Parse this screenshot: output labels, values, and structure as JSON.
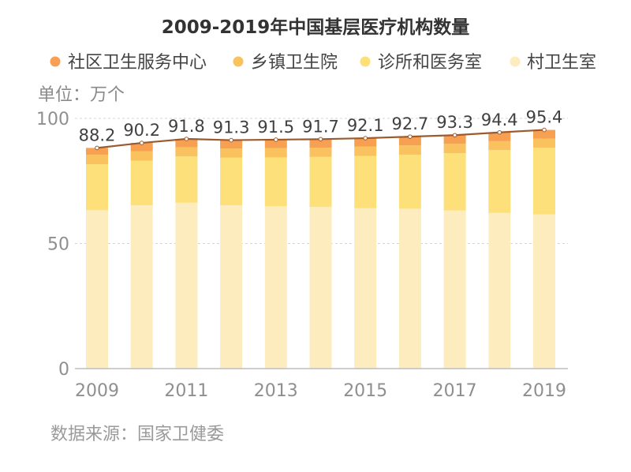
{
  "chart_data": {
    "type": "bar",
    "stacked": true,
    "title": "2009-2019年中国基层医疗机构数量",
    "unit_label": "单位：万个",
    "categories": [
      2009,
      2010,
      2011,
      2012,
      2013,
      2014,
      2015,
      2016,
      2017,
      2018,
      2019
    ],
    "x_tick_labels": [
      "2009",
      "2011",
      "2013",
      "2015",
      "2017",
      "2019"
    ],
    "ylim": [
      0,
      100
    ],
    "y_ticks": [
      0,
      50,
      100
    ],
    "grid": true,
    "series": [
      {
        "name": "社区卫生服务中心",
        "color": "#F7A052",
        "values": [
          2.7,
          3.3,
          3.3,
          3.3,
          3.4,
          3.4,
          3.4,
          3.5,
          3.5,
          3.5,
          3.5
        ]
      },
      {
        "name": "乡镇卫生院",
        "color": "#FAC25F",
        "values": [
          3.8,
          3.8,
          3.7,
          3.7,
          3.7,
          3.7,
          3.7,
          3.7,
          3.7,
          3.6,
          3.6
        ]
      },
      {
        "name": "诊所和医务室",
        "color": "#FDE07A",
        "values": [
          18.4,
          17.8,
          18.5,
          19.0,
          19.5,
          20.0,
          20.9,
          21.6,
          22.9,
          25.1,
          26.7
        ]
      },
      {
        "name": "村卫生室",
        "color": "#FDEDBE",
        "values": [
          63.3,
          65.3,
          66.3,
          65.3,
          64.9,
          64.6,
          64.1,
          63.9,
          63.2,
          62.2,
          61.6
        ]
      }
    ],
    "totals": [
      88.2,
      90.2,
      91.8,
      91.3,
      91.5,
      91.7,
      92.1,
      92.7,
      93.3,
      94.4,
      95.4
    ],
    "totals_line_color": "#9C5B2F",
    "source": "数据来源：国家卫健委"
  }
}
